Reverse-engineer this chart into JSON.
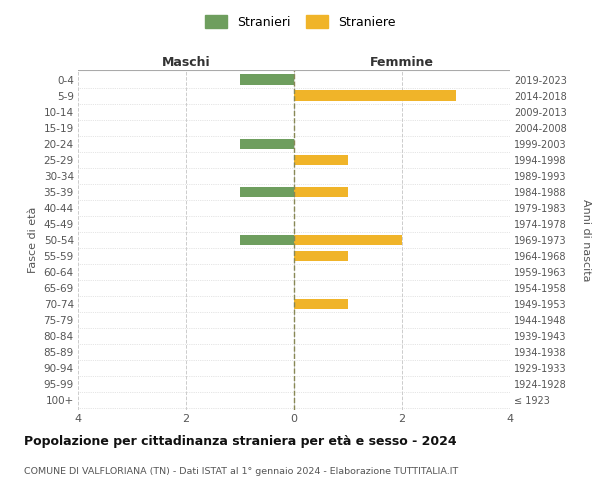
{
  "age_groups": [
    "100+",
    "95-99",
    "90-94",
    "85-89",
    "80-84",
    "75-79",
    "70-74",
    "65-69",
    "60-64",
    "55-59",
    "50-54",
    "45-49",
    "40-44",
    "35-39",
    "30-34",
    "25-29",
    "20-24",
    "15-19",
    "10-14",
    "5-9",
    "0-4"
  ],
  "birth_years": [
    "≤ 1923",
    "1924-1928",
    "1929-1933",
    "1934-1938",
    "1939-1943",
    "1944-1948",
    "1949-1953",
    "1954-1958",
    "1959-1963",
    "1964-1968",
    "1969-1973",
    "1974-1978",
    "1979-1983",
    "1984-1988",
    "1989-1993",
    "1994-1998",
    "1999-2003",
    "2004-2008",
    "2009-2013",
    "2014-2018",
    "2019-2023"
  ],
  "maschi": [
    0,
    0,
    0,
    0,
    0,
    0,
    0,
    0,
    0,
    0,
    -1,
    0,
    0,
    -1,
    0,
    0,
    -1,
    0,
    0,
    0,
    -1
  ],
  "femmine": [
    0,
    0,
    0,
    0,
    0,
    0,
    1,
    0,
    0,
    1,
    2,
    0,
    0,
    1,
    0,
    1,
    0,
    0,
    0,
    3,
    0
  ],
  "color_maschi": "#6e9e5e",
  "color_femmine": "#f0b429",
  "xlim": [
    -4,
    4
  ],
  "xticks": [
    -4,
    -2,
    0,
    2,
    4
  ],
  "xticklabels": [
    "4",
    "2",
    "0",
    "2",
    "4"
  ],
  "title": "Popolazione per cittadinanza straniera per età e sesso - 2024",
  "subtitle": "COMUNE DI VALFLORIANA (TN) - Dati ISTAT al 1° gennaio 2024 - Elaborazione TUTTITALIA.IT",
  "ylabel_left": "Fasce di età",
  "ylabel_right": "Anni di nascita",
  "header_left": "Maschi",
  "header_right": "Femmine",
  "legend_stranieri": "Stranieri",
  "legend_straniere": "Straniere",
  "bar_height": 0.65,
  "background_color": "#ffffff",
  "grid_color": "#cccccc"
}
